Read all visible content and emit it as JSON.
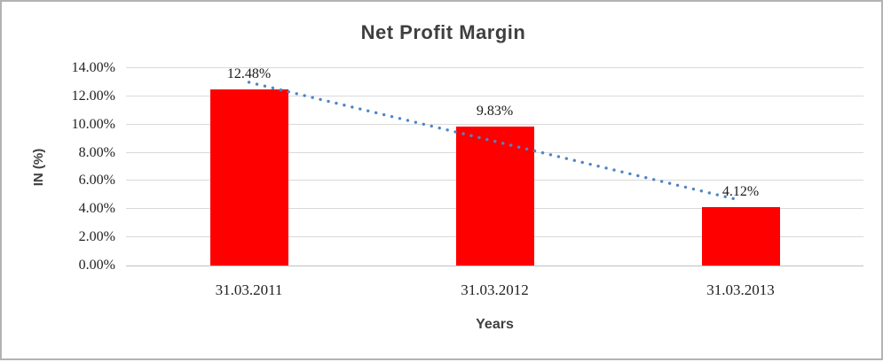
{
  "colors": {
    "frame_border": "#b3b3b3",
    "bar": "#ff0000",
    "trendline": "#4e86c6",
    "gridline": "#d9d9d9",
    "axis_line": "#bfbfbf",
    "tick_text": "#1f1f1f",
    "heading_text": "#3f3f3f"
  },
  "chart_data": {
    "type": "bar",
    "title": "Net Profit Margin",
    "xlabel": "Years",
    "ylabel": "IN (%)",
    "categories": [
      "31.03.2011",
      "31.03.2012",
      "31.03.2013"
    ],
    "series": [
      {
        "name": "Net Profit Margin",
        "color": "#ff0000",
        "values": [
          12.48,
          9.83,
          4.12
        ]
      }
    ],
    "data_labels": [
      "12.48%",
      "9.83%",
      "4.12%"
    ],
    "ylim": [
      0,
      14
    ],
    "yticks": [
      {
        "value": 0,
        "label": "0.00%"
      },
      {
        "value": 2,
        "label": "2.00%"
      },
      {
        "value": 4,
        "label": "4.00%"
      },
      {
        "value": 6,
        "label": "6.00%"
      },
      {
        "value": 8,
        "label": "8.00%"
      },
      {
        "value": 10,
        "label": "10.00%"
      },
      {
        "value": 12,
        "label": "12.00%"
      },
      {
        "value": 14,
        "label": "14.00%"
      }
    ],
    "grid": "horizontal",
    "legend": "none",
    "trendline": {
      "type": "linear",
      "style": "dotted",
      "color": "#4e86c6",
      "start_value": 13.0,
      "end_value": 4.62
    }
  }
}
